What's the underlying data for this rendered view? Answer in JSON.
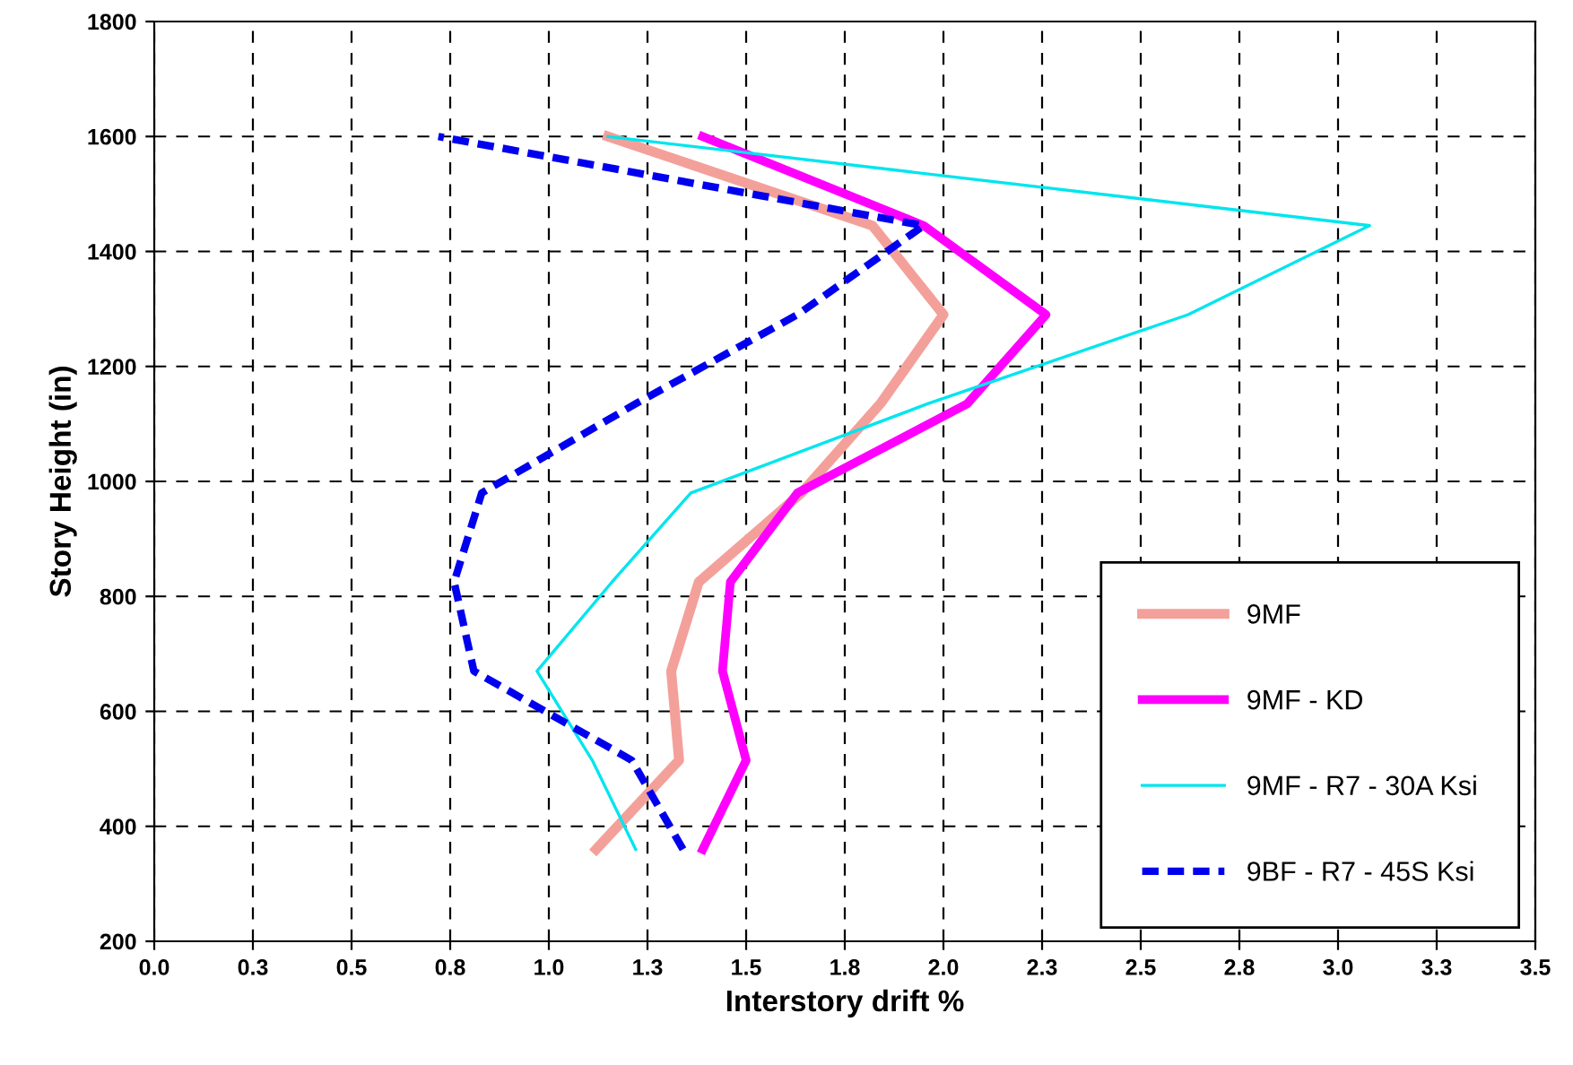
{
  "chart_data": {
    "type": "line",
    "xlabel": "Interstory drift %",
    "ylabel": "Story Height (in)",
    "xlim": [
      0,
      3.5
    ],
    "ylim": [
      200,
      1800
    ],
    "xticks": [
      {
        "value": 0,
        "label": "0.0"
      },
      {
        "value": 0.25,
        "label": "0.3"
      },
      {
        "value": 0.5,
        "label": "0.5"
      },
      {
        "value": 0.75,
        "label": "0.8"
      },
      {
        "value": 1.0,
        "label": "1.0"
      },
      {
        "value": 1.25,
        "label": "1.3"
      },
      {
        "value": 1.5,
        "label": "1.5"
      },
      {
        "value": 1.75,
        "label": "1.8"
      },
      {
        "value": 2.0,
        "label": "2.0"
      },
      {
        "value": 2.25,
        "label": "2.3"
      },
      {
        "value": 2.5,
        "label": "2.5"
      },
      {
        "value": 2.75,
        "label": "2.8"
      },
      {
        "value": 3.0,
        "label": "3.0"
      },
      {
        "value": 3.25,
        "label": "3.3"
      },
      {
        "value": 3.5,
        "label": "3.5"
      }
    ],
    "yticks": [
      200,
      400,
      600,
      800,
      1000,
      1200,
      1400,
      1600,
      1800
    ],
    "grid": true,
    "legend": "bottom right",
    "marker": "none",
    "series": [
      {
        "name": "9MF",
        "color": "#f4a09a",
        "line_style": "solid",
        "x": [
          1.12,
          1.33,
          1.31,
          1.38,
          1.64,
          1.84,
          2.0,
          1.82,
          1.15
        ],
        "values": [
          360,
          515,
          670,
          825,
          980,
          1135,
          1290,
          1445,
          1600
        ]
      },
      {
        "name": "9MF - KD",
        "color": "#ff00ff",
        "line_style": "solid",
        "x": [
          1.39,
          1.5,
          1.44,
          1.46,
          1.63,
          2.06,
          2.26,
          1.95,
          1.39
        ],
        "values": [
          360,
          515,
          670,
          825,
          980,
          1135,
          1290,
          1445,
          1600
        ]
      },
      {
        "name": "9MF - R7 - 30A Ksi",
        "color": "#00e5ee",
        "line_style": "solid",
        "x": [
          1.22,
          1.11,
          0.97,
          1.16,
          1.36,
          1.96,
          2.62,
          3.08,
          1.15
        ],
        "values": [
          360,
          515,
          670,
          825,
          980,
          1135,
          1290,
          1445,
          1600
        ]
      },
      {
        "name": "9BF - R7 - 45S Ksi",
        "color": "#0000ee",
        "line_style": "dashed",
        "x": [
          1.34,
          1.21,
          0.81,
          0.76,
          0.83,
          1.22,
          1.63,
          1.95,
          0.72
        ],
        "values": [
          360,
          515,
          670,
          825,
          980,
          1135,
          1290,
          1445,
          1600
        ]
      }
    ]
  }
}
